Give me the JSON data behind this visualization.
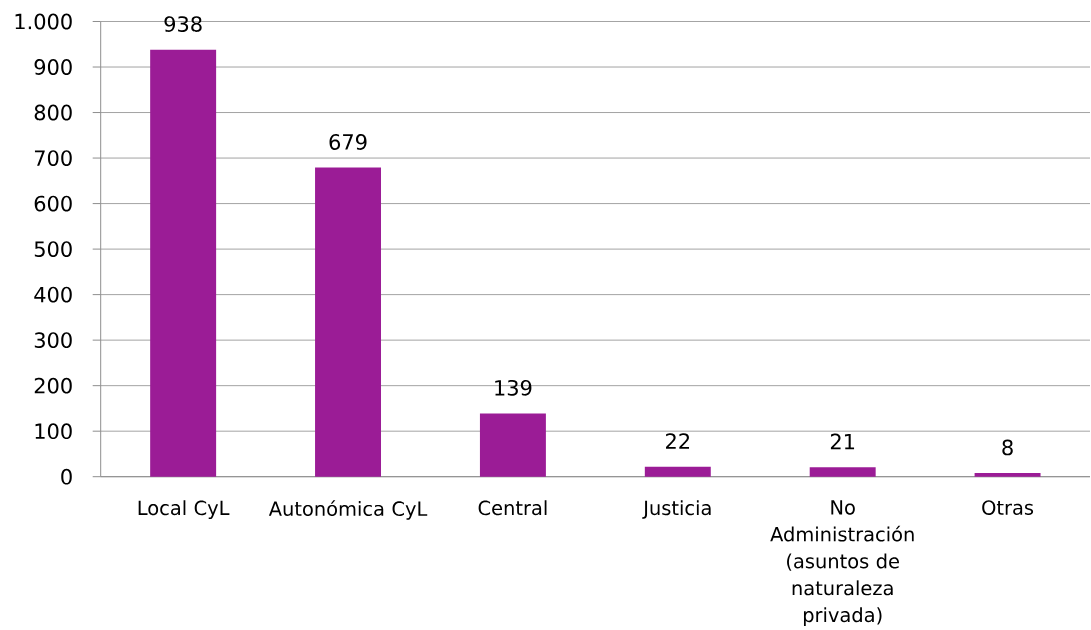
{
  "chart_data": {
    "type": "bar",
    "categories": [
      "Local CyL",
      "Autonómica CyL",
      "Central",
      "Justicia",
      "No Administración (asuntos de naturaleza privada)",
      "Otras"
    ],
    "values": [
      938,
      679,
      139,
      22,
      21,
      8
    ],
    "color": "#9b1c96",
    "ylim": [
      0,
      1000
    ],
    "yticks": [
      0,
      100,
      200,
      300,
      400,
      500,
      600,
      700,
      800,
      900,
      {
        "value": 1000,
        "label": "1.000"
      }
    ],
    "grid": "y",
    "data_labels": true
  }
}
